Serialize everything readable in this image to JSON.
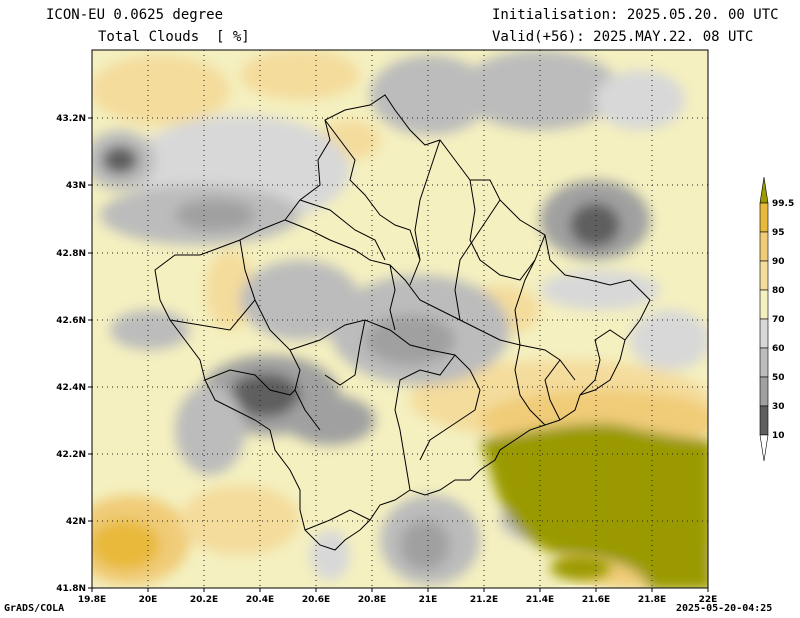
{
  "header": {
    "model": "ICON-EU 0.0625 degree",
    "field": "Total Clouds  [ %]",
    "init": "Initialisation: 2025.05.20. 00 UTC",
    "valid": "Valid(+56): 2025.MAY.22. 08 UTC"
  },
  "footer": {
    "credit": "GrADS/COLA",
    "timestamp": "2025-05-20-04:25"
  },
  "axes": {
    "lat_labels": [
      "43.2N",
      "43N",
      "42.8N",
      "42.6N",
      "42.4N",
      "42.2N",
      "42N",
      "41.8N"
    ],
    "lon_labels": [
      "19.8E",
      "20E",
      "20.2E",
      "20.4E",
      "20.6E",
      "20.8E",
      "21E",
      "21.2E",
      "21.4E",
      "21.6E",
      "21.8E",
      "22E"
    ]
  },
  "colorbar": {
    "labels": [
      "99.5",
      "95",
      "90",
      "80",
      "70",
      "60",
      "50",
      "30",
      "10"
    ],
    "colors": [
      "#9a9a00",
      "#e8b93a",
      "#f0cc78",
      "#f4dc9c",
      "#f4f0c0",
      "#d8d8d8",
      "#bcbcbc",
      "#a0a0a0",
      "#5e5e5e",
      "#ffffff"
    ]
  }
}
